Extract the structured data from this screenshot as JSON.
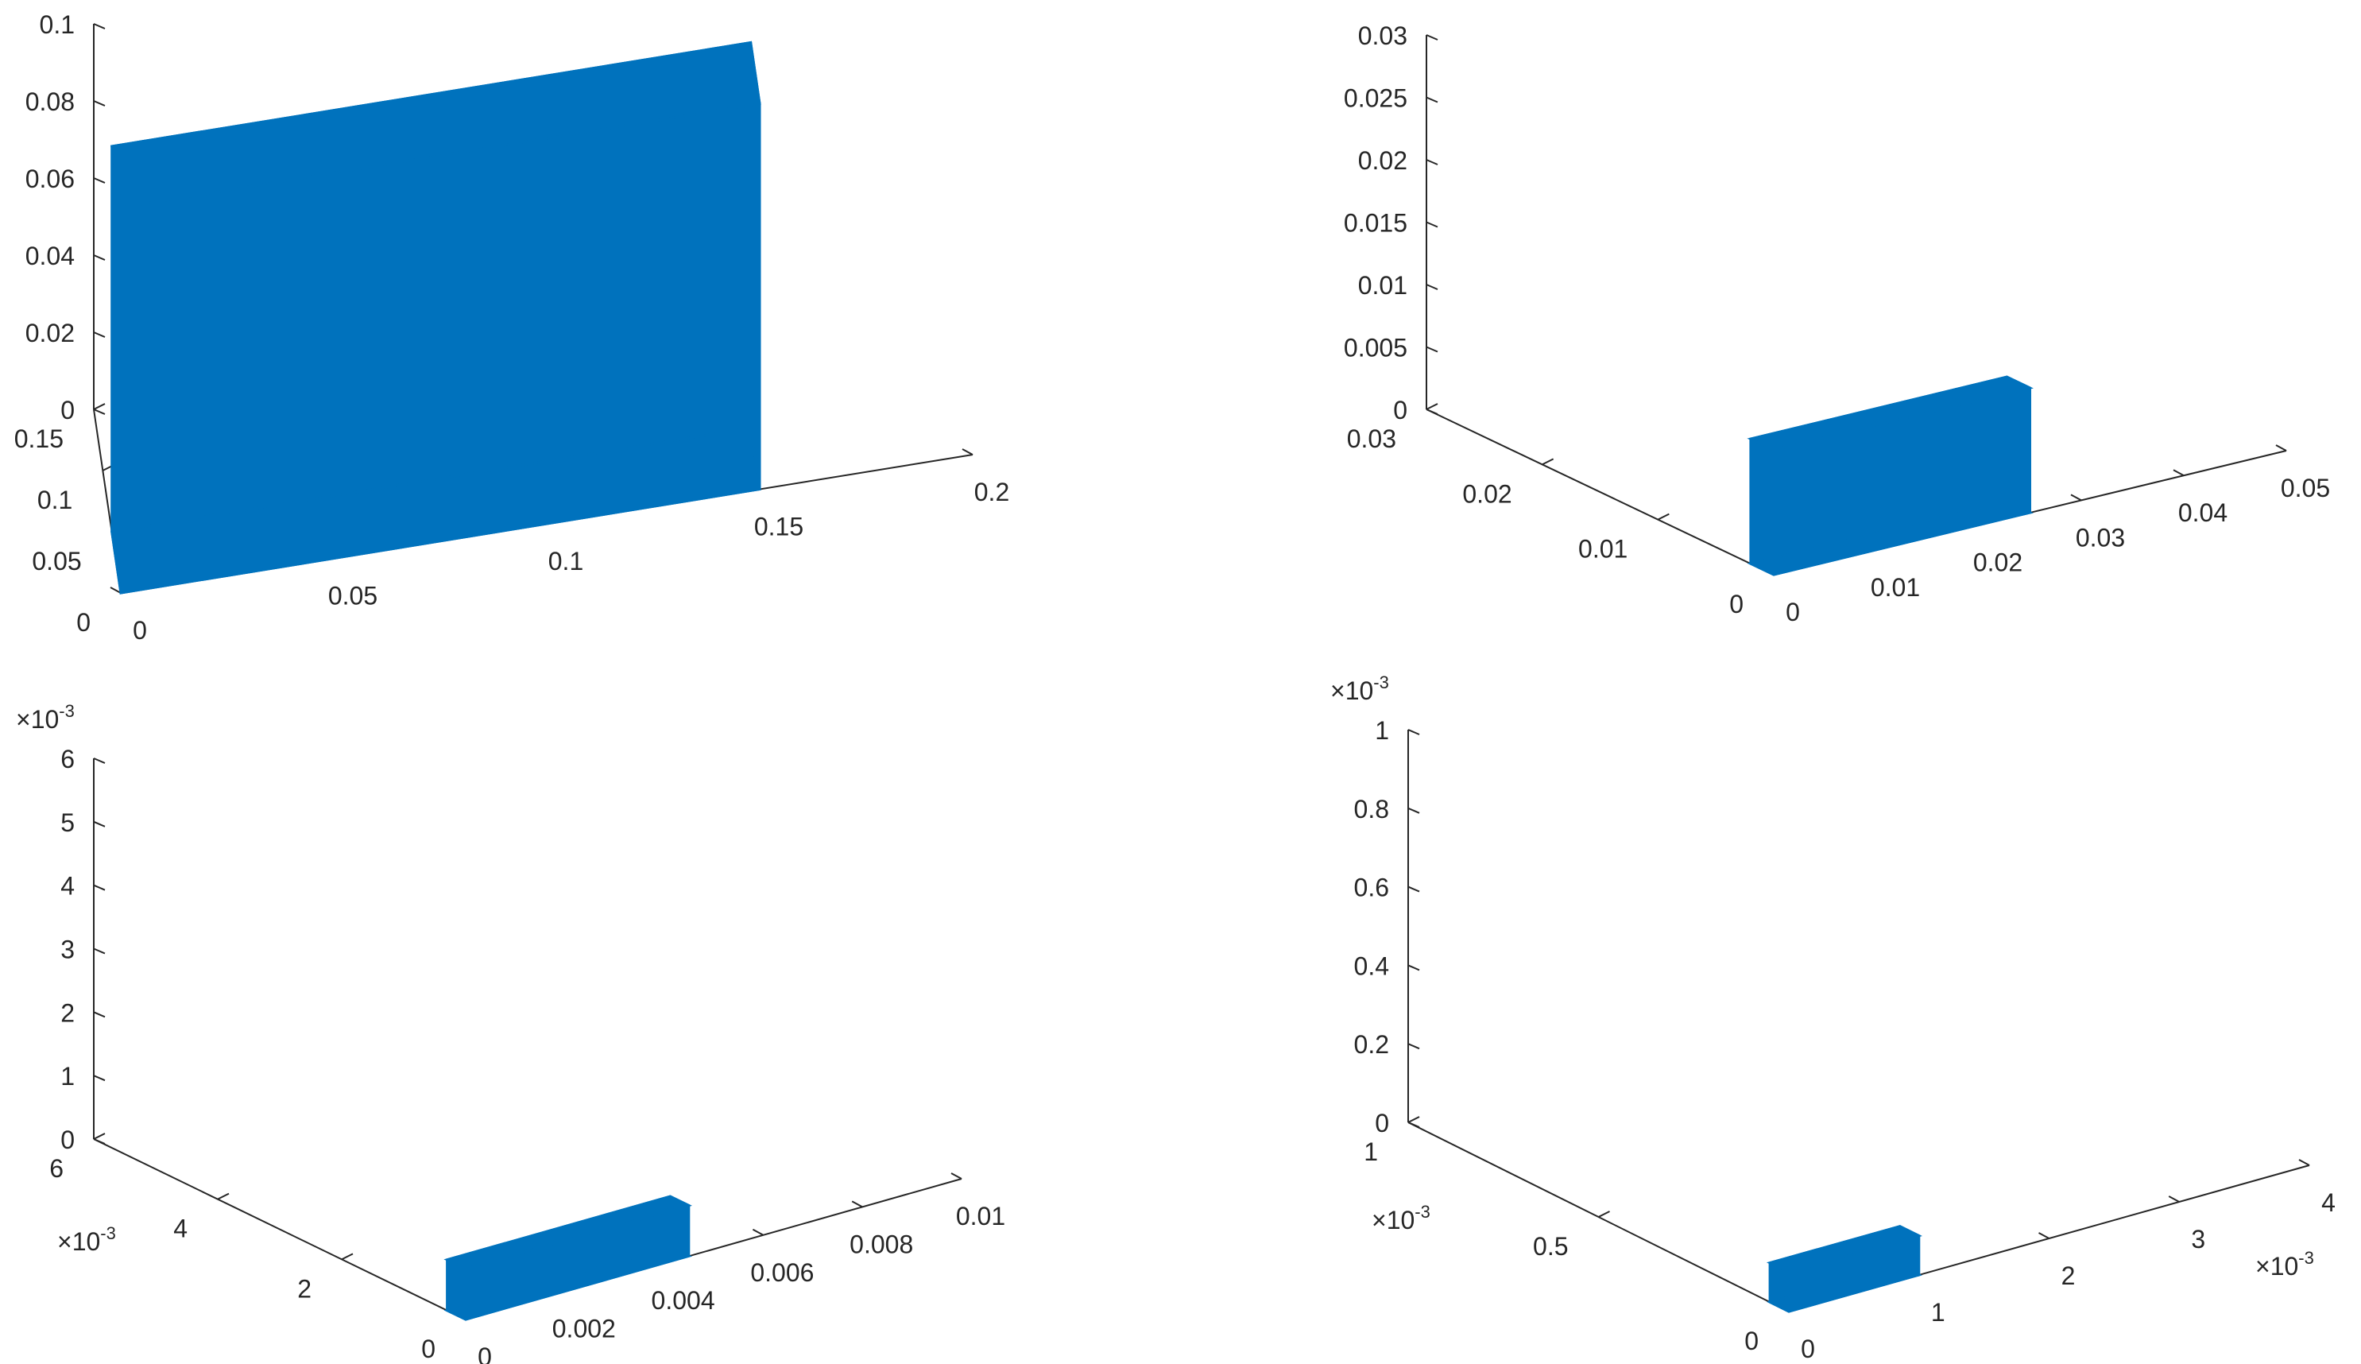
{
  "chart_data": [
    {
      "type": "scatter",
      "title": "",
      "xlabel": "",
      "ylabel": "",
      "zlabel": "",
      "marker_color": "#0072BD",
      "grid": false,
      "xlim": [
        0,
        0.2
      ],
      "ylim": [
        0,
        0.15
      ],
      "zlim": [
        0,
        0.1
      ],
      "x_ticks": [
        "0",
        "0.05",
        "0.1",
        "0.15",
        "0.2"
      ],
      "y_ticks": [
        "0",
        "0.05",
        "0.1",
        "0.15"
      ],
      "z_ticks": [
        "0",
        "0.02",
        "0.04",
        "0.06",
        "0.08",
        "0.1"
      ],
      "x_exponent": "",
      "y_exponent": "",
      "z_exponent": "",
      "point_cloud_extent": {
        "x": [
          0,
          0.15
        ],
        "y": [
          0,
          0.05
        ],
        "z": [
          0,
          0.1
        ]
      }
    },
    {
      "type": "scatter",
      "title": "",
      "xlabel": "",
      "ylabel": "",
      "zlabel": "",
      "marker_color": "#0072BD",
      "grid": false,
      "xlim": [
        0,
        0.05
      ],
      "ylim": [
        0,
        0.03
      ],
      "zlim": [
        0,
        0.03
      ],
      "x_ticks": [
        "0",
        "0.01",
        "0.02",
        "0.03",
        "0.04",
        "0.05"
      ],
      "y_ticks": [
        "0",
        "0.01",
        "0.02",
        "0.03"
      ],
      "z_ticks": [
        "0",
        "0.005",
        "0.01",
        "0.015",
        "0.02",
        "0.025",
        "0.03"
      ],
      "x_exponent": "",
      "y_exponent": "",
      "z_exponent": "",
      "point_cloud_extent": {
        "x": [
          0,
          0.025
        ],
        "y": [
          0,
          0.002
        ],
        "z": [
          0,
          0.01
        ]
      }
    },
    {
      "type": "scatter",
      "title": "",
      "xlabel": "",
      "ylabel": "",
      "zlabel": "",
      "marker_color": "#0072BD",
      "grid": false,
      "xlim": [
        0,
        0.01
      ],
      "ylim": [
        0,
        6
      ],
      "zlim": [
        0,
        6
      ],
      "x_ticks": [
        "0",
        "0.002",
        "0.004",
        "0.006",
        "0.008",
        "0.01"
      ],
      "y_ticks": [
        "0",
        "2",
        "4",
        "6"
      ],
      "z_ticks": [
        "0",
        "1",
        "2",
        "3",
        "4",
        "5",
        "6"
      ],
      "x_exponent": "",
      "y_exponent": "×10",
      "z_exponent": "×10",
      "exponent_power": "-3",
      "point_cloud_extent": {
        "x": [
          0,
          0.0045
        ],
        "y": [
          0,
          0.3
        ],
        "z": [
          0,
          0.8
        ]
      }
    },
    {
      "type": "scatter",
      "title": "",
      "xlabel": "",
      "ylabel": "",
      "zlabel": "",
      "marker_color": "#0072BD",
      "grid": false,
      "xlim": [
        0,
        4
      ],
      "ylim": [
        0,
        1
      ],
      "zlim": [
        0,
        1
      ],
      "x_ticks": [
        "0",
        "1",
        "2",
        "3",
        "4"
      ],
      "y_ticks": [
        "0",
        "0.5",
        "1"
      ],
      "z_ticks": [
        "0",
        "0.2",
        "0.4",
        "0.6",
        "0.8",
        "1"
      ],
      "x_exponent": "×10",
      "y_exponent": "×10",
      "z_exponent": "×10",
      "exponent_power": "-3",
      "point_cloud_extent": {
        "x": [
          0,
          1.0
        ],
        "y": [
          0,
          0.05
        ],
        "z": [
          0,
          0.1
        ]
      }
    }
  ]
}
